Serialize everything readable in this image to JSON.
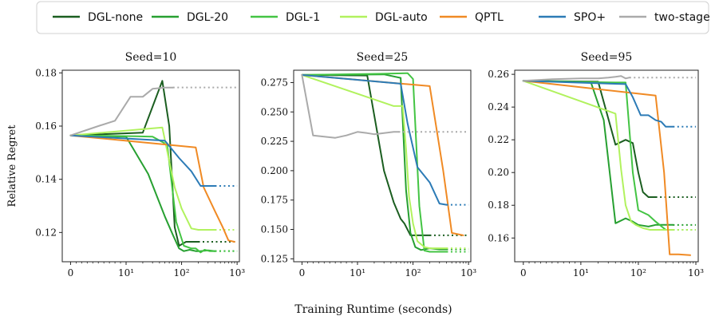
{
  "figure": {
    "ylabel": "Relative Regret",
    "xlabel": "Training Runtime (seconds)"
  },
  "legend": [
    {
      "label": "DGL-none",
      "color": "#1b5e20"
    },
    {
      "label": "DGL-20",
      "color": "#27a031"
    },
    {
      "label": "DGL-1",
      "color": "#43c443"
    },
    {
      "label": "DGL-auto",
      "color": "#b1f25e"
    },
    {
      "label": "QPTL",
      "color": "#f08a24"
    },
    {
      "label": "SPO+",
      "color": "#2c7bb6"
    },
    {
      "label": "two-stage",
      "color": "#aaaaaa"
    }
  ],
  "chart_data": [
    {
      "type": "line",
      "title": "Seed=10",
      "xscale": "symlog",
      "xlim": [
        -1.5,
        1100
      ],
      "ylim": [
        0.109,
        0.181
      ],
      "yticks": [
        0.12,
        0.14,
        0.16,
        0.18
      ],
      "ytick_labels": [
        "0.12",
        "0.14",
        "0.16",
        "0.18"
      ],
      "xticks": [
        0,
        10,
        100,
        1000
      ],
      "xtick_labels": [
        "0",
        "10¹",
        "10²",
        "10³"
      ],
      "series": [
        {
          "name": "DGL-none",
          "x": [
            0,
            20,
            45,
            60,
            75,
            90,
            120,
            160,
            200
          ],
          "y": [
            0.1565,
            0.1575,
            0.177,
            0.16,
            0.122,
            0.115,
            0.1165,
            0.1165,
            0.1165
          ],
          "dotted_to": 1000,
          "dotted_y": 0.1165
        },
        {
          "name": "DGL-20",
          "x": [
            0,
            10,
            25,
            50,
            70,
            90,
            110,
            140,
            180,
            220,
            300,
            400
          ],
          "y": [
            0.1565,
            0.156,
            0.142,
            0.126,
            0.119,
            0.114,
            0.113,
            0.1135,
            0.113,
            0.113,
            0.1133,
            0.113
          ],
          "dotted_to": 1000,
          "dotted_y": 0.113
        },
        {
          "name": "DGL-1",
          "x": [
            0,
            15,
            30,
            55,
            80,
            110,
            150,
            180,
            220,
            260,
            320,
            400
          ],
          "y": [
            0.1565,
            0.1562,
            0.156,
            0.153,
            0.124,
            0.115,
            0.114,
            0.114,
            0.1125,
            0.1135,
            0.113,
            0.113
          ],
          "dotted_to": 1000,
          "dotted_y": 0.113
        },
        {
          "name": "DGL-auto",
          "x": [
            0,
            45,
            75,
            100,
            150,
            200,
            300,
            400
          ],
          "y": [
            0.1565,
            0.1595,
            0.137,
            0.129,
            0.1215,
            0.121,
            0.121,
            0.121
          ],
          "dotted_to": 1000,
          "dotted_y": 0.121
        },
        {
          "name": "QPTL",
          "x": [
            0,
            180,
            250,
            400,
            550,
            700,
            900
          ],
          "y": [
            0.1565,
            0.152,
            0.137,
            0.128,
            0.122,
            0.117,
            0.1165
          ],
          "dotted_to": null,
          "dotted_y": null
        },
        {
          "name": "SPO+",
          "x": [
            0,
            50,
            90,
            150,
            220,
            260,
            300,
            400
          ],
          "y": [
            0.1565,
            0.1545,
            0.148,
            0.143,
            0.1375,
            0.1375,
            0.1375,
            0.1375
          ],
          "dotted_to": 1000,
          "dotted_y": 0.1375
        },
        {
          "name": "two-stage",
          "x": [
            0,
            5,
            8,
            12,
            20,
            30,
            50,
            70
          ],
          "y": [
            0.1565,
            0.16,
            0.162,
            0.171,
            0.171,
            0.174,
            0.1745,
            0.1745
          ],
          "dotted_to": 1000,
          "dotted_y": 0.1745
        }
      ]
    },
    {
      "type": "line",
      "title": "Seed=25",
      "xscale": "symlog",
      "xlim": [
        -1.5,
        1100
      ],
      "ylim": [
        0.1225,
        0.2855
      ],
      "yticks": [
        0.125,
        0.15,
        0.175,
        0.2,
        0.225,
        0.25,
        0.275
      ],
      "ytick_labels": [
        "0.125",
        "0.150",
        "0.175",
        "0.200",
        "0.225",
        "0.250",
        "0.275"
      ],
      "xticks": [
        0,
        10,
        100,
        1000
      ],
      "xtick_labels": [
        "0",
        "10¹",
        "10²",
        "10³"
      ],
      "series": [
        {
          "name": "DGL-none",
          "x": [
            0,
            15,
            30,
            45,
            60,
            70,
            90,
            110,
            150,
            200
          ],
          "y": [
            0.2815,
            0.281,
            0.2,
            0.173,
            0.159,
            0.155,
            0.145,
            0.145,
            0.145,
            0.145
          ],
          "dotted_to": 1000,
          "dotted_y": 0.145
        },
        {
          "name": "DGL-20",
          "x": [
            0,
            30,
            60,
            75,
            90,
            110,
            140,
            200,
            300,
            400
          ],
          "y": [
            0.2815,
            0.282,
            0.279,
            0.183,
            0.147,
            0.135,
            0.1325,
            0.134,
            0.133,
            0.133
          ],
          "dotted_to": 1000,
          "dotted_y": 0.133
        },
        {
          "name": "DGL-1",
          "x": [
            0,
            30,
            80,
            100,
            130,
            160,
            200,
            300,
            400
          ],
          "y": [
            0.2815,
            0.2825,
            0.283,
            0.278,
            0.17,
            0.132,
            0.131,
            0.131,
            0.131
          ],
          "dotted_to": 1000,
          "dotted_y": 0.131
        },
        {
          "name": "DGL-auto",
          "x": [
            0,
            45,
            65,
            75,
            85,
            100,
            120,
            160,
            200,
            300,
            400
          ],
          "y": [
            0.2815,
            0.255,
            0.255,
            0.218,
            0.178,
            0.155,
            0.14,
            0.135,
            0.134,
            0.134,
            0.134
          ],
          "dotted_to": 1000,
          "dotted_y": 0.134
        },
        {
          "name": "QPTL",
          "x": [
            0,
            200,
            350,
            500,
            800
          ],
          "y": [
            0.2815,
            0.272,
            0.2,
            0.147,
            0.145
          ],
          "dotted_to": null,
          "dotted_y": null
        },
        {
          "name": "SPO+",
          "x": [
            0,
            60,
            80,
            120,
            200,
            300,
            400
          ],
          "y": [
            0.2815,
            0.274,
            0.24,
            0.203,
            0.19,
            0.172,
            0.171
          ],
          "dotted_to": 1000,
          "dotted_y": 0.171
        },
        {
          "name": "two-stage",
          "x": [
            0,
            2,
            4,
            6,
            8,
            10,
            15,
            20,
            30,
            45,
            55
          ],
          "y": [
            0.2815,
            0.23,
            0.229,
            0.228,
            0.23,
            0.233,
            0.232,
            0.231,
            0.232,
            0.233,
            0.233
          ],
          "dotted_to": 1000,
          "dotted_y": 0.233
        }
      ]
    },
    {
      "type": "line",
      "title": "Seed=95",
      "xscale": "symlog",
      "xlim": [
        -1.5,
        1100
      ],
      "ylim": [
        0.1455,
        0.2625
      ],
      "yticks": [
        0.16,
        0.18,
        0.2,
        0.22,
        0.24,
        0.26
      ],
      "ytick_labels": [
        "0.16",
        "0.18",
        "0.20",
        "0.22",
        "0.24",
        "0.26"
      ],
      "xticks": [
        0,
        10,
        100,
        1000
      ],
      "xtick_labels": [
        "0",
        "10¹",
        "10²",
        "10³"
      ],
      "series": [
        {
          "name": "DGL-none",
          "x": [
            0,
            20,
            40,
            60,
            80,
            100,
            120,
            150,
            200
          ],
          "y": [
            0.256,
            0.2555,
            0.217,
            0.22,
            0.218,
            0.2,
            0.188,
            0.185,
            0.185
          ],
          "dotted_to": 1000,
          "dotted_y": 0.185
        },
        {
          "name": "DGL-20",
          "x": [
            0,
            15,
            25,
            40,
            60,
            80,
            100,
            150,
            200,
            300,
            400
          ],
          "y": [
            0.256,
            0.255,
            0.232,
            0.169,
            0.172,
            0.17,
            0.168,
            0.167,
            0.168,
            0.168,
            0.168
          ],
          "dotted_to": 1000,
          "dotted_y": 0.168
        },
        {
          "name": "DGL-1",
          "x": [
            0,
            40,
            60,
            80,
            100,
            150,
            200,
            300,
            400
          ],
          "y": [
            0.256,
            0.255,
            0.255,
            0.2,
            0.177,
            0.174,
            0.17,
            0.165,
            0.165
          ],
          "dotted_to": 1000,
          "dotted_y": 0.165
        },
        {
          "name": "DGL-auto",
          "x": [
            0,
            40,
            50,
            60,
            75,
            90,
            120,
            160,
            200,
            300,
            400
          ],
          "y": [
            0.256,
            0.236,
            0.202,
            0.18,
            0.17,
            0.168,
            0.166,
            0.165,
            0.165,
            0.165,
            0.165
          ],
          "dotted_to": 1000,
          "dotted_y": 0.165
        },
        {
          "name": "QPTL",
          "x": [
            0,
            200,
            280,
            350,
            500,
            800
          ],
          "y": [
            0.256,
            0.247,
            0.2,
            0.15,
            0.15,
            0.1495
          ],
          "dotted_to": null,
          "dotted_y": null
        },
        {
          "name": "SPO+",
          "x": [
            0,
            60,
            80,
            110,
            150,
            200,
            250,
            300,
            400
          ],
          "y": [
            0.256,
            0.254,
            0.246,
            0.235,
            0.235,
            0.232,
            0.231,
            0.228,
            0.228
          ],
          "dotted_to": 1000,
          "dotted_y": 0.228
        },
        {
          "name": "two-stage",
          "x": [
            0,
            5,
            10,
            20,
            30,
            40,
            50,
            60,
            70
          ],
          "y": [
            0.256,
            0.257,
            0.2575,
            0.2575,
            0.258,
            0.2585,
            0.259,
            0.2575,
            0.258
          ],
          "dotted_to": 1000,
          "dotted_y": 0.258
        }
      ]
    }
  ]
}
